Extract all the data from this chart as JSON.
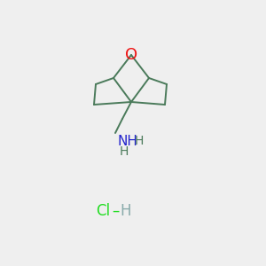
{
  "background_color": "#efefef",
  "bond_color": "#4a7a5a",
  "oxygen_color": "#ee1111",
  "nitrogen_color": "#2222cc",
  "cl_color": "#22dd22",
  "h_color": "#88aaaa",
  "o_text": "O",
  "nh_text": "NH",
  "h_top_text": "H",
  "h_bot_text": "H",
  "cl_text": "Cl",
  "dash_text": "–",
  "h_salt_text": "H",
  "line_width": 1.4,
  "font_size": 11
}
